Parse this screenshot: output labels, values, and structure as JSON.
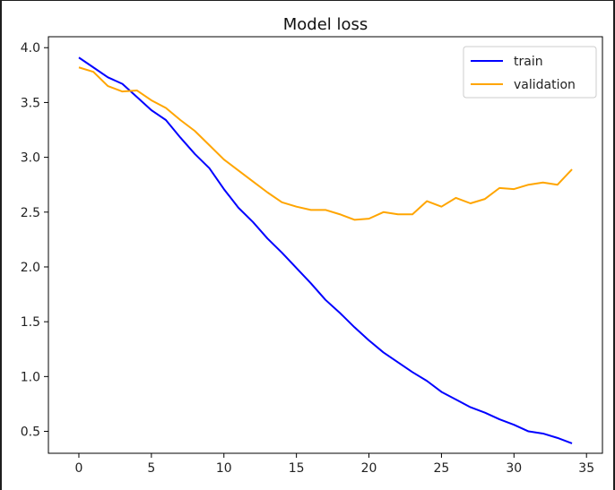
{
  "colors": {
    "train": "#0000ff",
    "validation": "#ffa500",
    "axis": "#000000",
    "legend_border": "#cccccc"
  },
  "chart_data": {
    "type": "line",
    "title": "Model loss",
    "xlabel": "",
    "ylabel": "",
    "xlim": [
      -2.1,
      36.1
    ],
    "ylim": [
      0.3,
      4.1
    ],
    "xticks": [
      0,
      5,
      10,
      15,
      20,
      25,
      30,
      35
    ],
    "yticks": [
      0.5,
      1.0,
      1.5,
      2.0,
      2.5,
      3.0,
      3.5,
      4.0
    ],
    "grid": false,
    "legend_position": "top-right",
    "x": [
      0,
      1,
      2,
      3,
      4,
      5,
      6,
      7,
      8,
      9,
      10,
      11,
      12,
      13,
      14,
      15,
      16,
      17,
      18,
      19,
      20,
      21,
      22,
      23,
      24,
      25,
      26,
      27,
      28,
      29,
      30,
      31,
      32,
      33,
      34
    ],
    "series": [
      {
        "name": "train",
        "color": "#0000ff",
        "values": [
          3.91,
          3.82,
          3.73,
          3.67,
          3.55,
          3.43,
          3.34,
          3.18,
          3.03,
          2.9,
          2.71,
          2.54,
          2.41,
          2.26,
          2.13,
          1.99,
          1.85,
          1.7,
          1.58,
          1.45,
          1.33,
          1.22,
          1.13,
          1.04,
          0.96,
          0.86,
          0.79,
          0.72,
          0.67,
          0.61,
          0.56,
          0.5,
          0.48,
          0.44,
          0.39
        ]
      },
      {
        "name": "validation",
        "color": "#ffa500",
        "values": [
          3.82,
          3.78,
          3.65,
          3.6,
          3.61,
          3.52,
          3.45,
          3.34,
          3.24,
          3.11,
          2.98,
          2.88,
          2.78,
          2.68,
          2.59,
          2.55,
          2.52,
          2.52,
          2.48,
          2.43,
          2.44,
          2.5,
          2.48,
          2.48,
          2.6,
          2.55,
          2.63,
          2.58,
          2.62,
          2.72,
          2.71,
          2.75,
          2.77,
          2.75,
          2.89
        ]
      }
    ]
  }
}
